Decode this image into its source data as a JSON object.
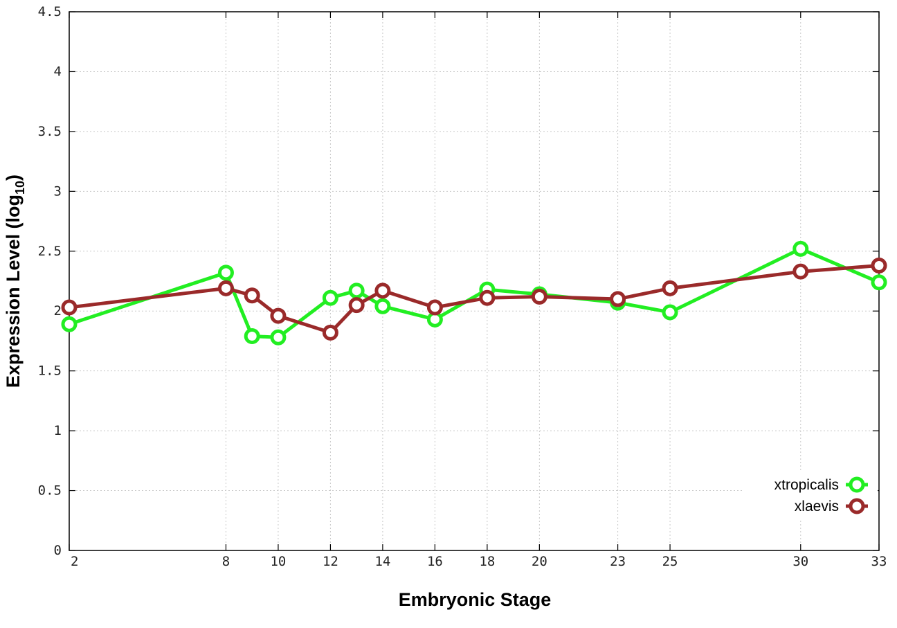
{
  "chart_data": {
    "type": "line",
    "xlabel": "Embryonic Stage",
    "ylabel_main": "Expression Level (log",
    "ylabel_sub": "10",
    "ylabel_close": ")",
    "xlim": [
      2,
      33
    ],
    "ylim": [
      0,
      4.5
    ],
    "x_ticks": [
      2,
      8,
      10,
      12,
      14,
      16,
      18,
      20,
      23,
      25,
      30,
      33
    ],
    "y_ticks": [
      0,
      0.5,
      1,
      1.5,
      2,
      2.5,
      3,
      3.5,
      4,
      4.5
    ],
    "y_tick_labels": [
      "0",
      "0.5",
      "1",
      "1.5",
      "2",
      "2.5",
      "3",
      "3.5",
      "4",
      "4.5"
    ],
    "grid": true,
    "legend_position": "bottom-right",
    "series": [
      {
        "name": "xtropicalis",
        "color": "#22ee22",
        "x": [
          2,
          8,
          9,
          10,
          12,
          13,
          14,
          16,
          18,
          20,
          23,
          25,
          30,
          33
        ],
        "y": [
          1.89,
          2.32,
          1.79,
          1.78,
          2.11,
          2.17,
          2.04,
          1.93,
          2.18,
          2.14,
          2.07,
          1.99,
          2.52,
          2.24
        ]
      },
      {
        "name": "xlaevis",
        "color": "#9a2a2a",
        "x": [
          2,
          8,
          9,
          10,
          12,
          13,
          14,
          16,
          18,
          20,
          23,
          25,
          30,
          33
        ],
        "y": [
          2.03,
          2.19,
          2.13,
          1.96,
          1.82,
          2.05,
          2.17,
          2.03,
          2.11,
          2.12,
          2.1,
          2.19,
          2.33,
          2.38
        ]
      }
    ]
  }
}
